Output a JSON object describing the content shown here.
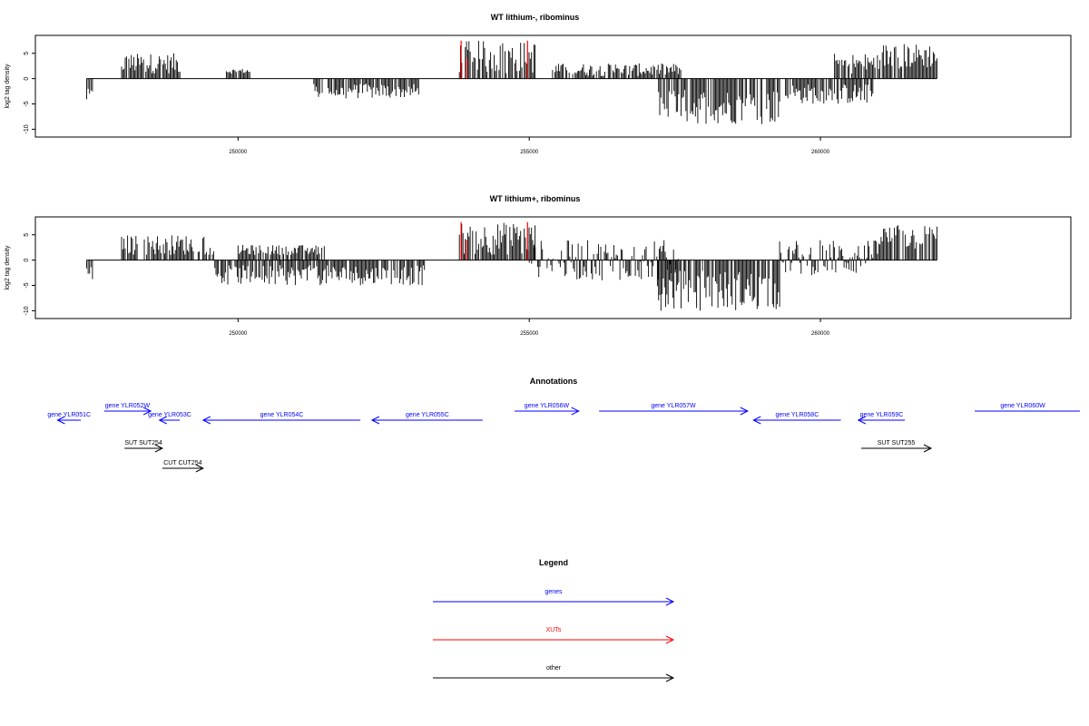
{
  "chart_data": [
    {
      "type": "bar",
      "title": "WT lithium-, ribominus",
      "ylabel": "log2 tag density",
      "xlim": [
        246800,
        264300
      ],
      "ylim": [
        -11,
        8
      ],
      "yticks": [
        -10,
        -5,
        0,
        5
      ],
      "xticks": [
        250000,
        255000,
        260000
      ],
      "series": [
        {
          "color": "#000000",
          "segments": [
            {
              "x_start": 247400,
              "x_end": 247500,
              "min": -5,
              "max": -2
            },
            {
              "x_start": 248000,
              "x_end": 249000,
              "min": 1,
              "max": 5
            },
            {
              "x_start": 249800,
              "x_end": 250200,
              "min": 1,
              "max": 2
            },
            {
              "x_start": 251000,
              "x_end": 251000,
              "min": 2,
              "max": 2
            },
            {
              "x_start": 251300,
              "x_end": 253100,
              "min": -4,
              "max": -1
            },
            {
              "x_start": 253800,
              "x_end": 255100,
              "min": 1,
              "max": 7.5
            },
            {
              "x_start": 255400,
              "x_end": 257600,
              "min": 0.5,
              "max": 3
            },
            {
              "x_start": 257200,
              "x_end": 259300,
              "min": -9,
              "max": -2
            },
            {
              "x_start": 259400,
              "x_end": 260900,
              "min": -5,
              "max": -1
            },
            {
              "x_start": 260200,
              "x_end": 261000,
              "min": 1,
              "max": 5
            },
            {
              "x_start": 261000,
              "x_end": 262000,
              "min": 2,
              "max": 7
            }
          ]
        },
        {
          "color": "#ff0000",
          "marks": [
            {
              "x": 253830,
              "y": 7.5
            },
            {
              "x": 253920,
              "y": 4
            },
            {
              "x": 254970,
              "y": 7.5
            }
          ]
        }
      ]
    },
    {
      "type": "bar",
      "title": "WT lithium+, ribominus",
      "ylabel": "log2 tag density",
      "xlim": [
        246800,
        264300
      ],
      "ylim": [
        -11,
        8
      ],
      "yticks": [
        -10,
        -5,
        0,
        5
      ],
      "xticks": [
        250000,
        255000,
        260000
      ],
      "series": [
        {
          "color": "#000000",
          "segments": [
            {
              "x_start": 247400,
              "x_end": 247500,
              "min": -4,
              "max": -1
            },
            {
              "x_start": 248000,
              "x_end": 249600,
              "min": 1,
              "max": 5
            },
            {
              "x_start": 249600,
              "x_end": 253200,
              "min": -5,
              "max": -1
            },
            {
              "x_start": 250000,
              "x_end": 251500,
              "min": 1,
              "max": 3
            },
            {
              "x_start": 253800,
              "x_end": 255100,
              "min": 1,
              "max": 7.5
            },
            {
              "x_start": 255000,
              "x_end": 257600,
              "min": -4,
              "max": 4
            },
            {
              "x_start": 257200,
              "x_end": 259300,
              "min": -10,
              "max": -2
            },
            {
              "x_start": 259300,
              "x_end": 261000,
              "min": -3,
              "max": 4
            },
            {
              "x_start": 261000,
              "x_end": 262000,
              "min": 2,
              "max": 7
            }
          ]
        },
        {
          "color": "#ff0000",
          "marks": [
            {
              "x": 253830,
              "y": 7.5
            },
            {
              "x": 253920,
              "y": 4
            },
            {
              "x": 254970,
              "y": 7.5
            }
          ]
        }
      ]
    }
  ],
  "annotations": {
    "title": "Annotations",
    "genes": [
      {
        "label": "gene YLR051C",
        "x_start": 247300,
        "x_end": 246900,
        "row": 1,
        "color": "#0000ff"
      },
      {
        "label": "gene YLR052W",
        "x_start": 247700,
        "x_end": 248500,
        "row": 0,
        "color": "#0000ff"
      },
      {
        "label": "gene YLR053C",
        "x_start": 249000,
        "x_end": 248650,
        "row": 1,
        "color": "#0000ff"
      },
      {
        "label": "gene YLR054C",
        "x_start": 252100,
        "x_end": 249400,
        "row": 1,
        "color": "#0000ff"
      },
      {
        "label": "gene YLR055C",
        "x_start": 254200,
        "x_end": 252300,
        "row": 1,
        "color": "#0000ff"
      },
      {
        "label": "gene YLR056W",
        "x_start": 254750,
        "x_end": 255850,
        "row": 0,
        "color": "#0000ff"
      },
      {
        "label": "gene YLR057W",
        "x_start": 256200,
        "x_end": 258750,
        "row": 0,
        "color": "#0000ff"
      },
      {
        "label": "gene YLR058C",
        "x_start": 260350,
        "x_end": 258850,
        "row": 1,
        "color": "#0000ff"
      },
      {
        "label": "gene YLR059C",
        "x_start": 261450,
        "x_end": 260650,
        "row": 1,
        "color": "#0000ff"
      },
      {
        "label": "gene YLR060W",
        "x_start": 262650,
        "x_end": 264300,
        "row": 0,
        "color": "#0000ff"
      },
      {
        "label": "SUT SUT254",
        "x_start": 248050,
        "x_end": 248700,
        "row": 2,
        "color": "#000000"
      },
      {
        "label": "CUT CUT254",
        "x_start": 248700,
        "x_end": 249400,
        "row": 3,
        "color": "#000000"
      },
      {
        "label": "SUT SUT255",
        "x_start": 260700,
        "x_end": 261900,
        "row": 2,
        "color": "#000000"
      }
    ]
  },
  "legend": {
    "title": "Legend",
    "items": [
      {
        "label": "genes",
        "color": "#0000ff"
      },
      {
        "label": "XUTs",
        "color": "#ff0000"
      },
      {
        "label": "other",
        "color": "#000000"
      }
    ]
  }
}
